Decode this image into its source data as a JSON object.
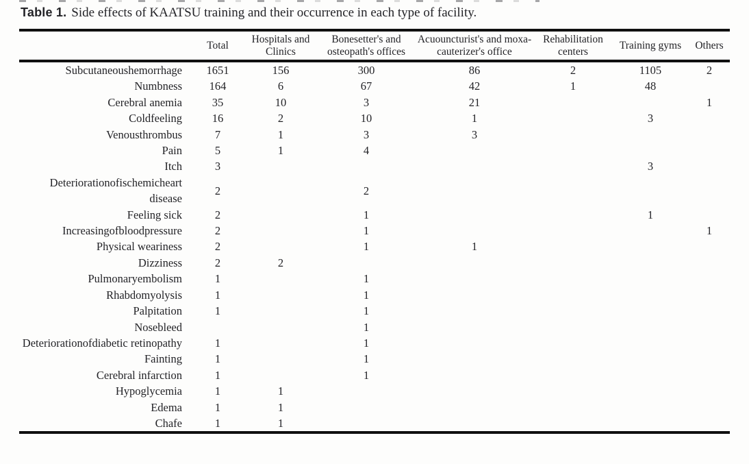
{
  "caption": {
    "label": "Table 1.",
    "text": "Side effects of KAATSU training and their occurrence in each type of facility."
  },
  "table": {
    "columns": [
      "Total",
      "Hospitals and Clinics",
      "Bonesetter's and osteopath's offices",
      "Acuouncturist's and moxa-cauterizer's office",
      "Rehabilitation centers",
      "Training gyms",
      "Others"
    ],
    "rows": [
      {
        "label": "Subcutaneoushemorrhage",
        "values": [
          "1651",
          "156",
          "300",
          "86",
          "2",
          "1105",
          "2"
        ]
      },
      {
        "label": "Numbness",
        "values": [
          "164",
          "6",
          "67",
          "42",
          "1",
          "48",
          ""
        ]
      },
      {
        "label": "Cerebral anemia",
        "values": [
          "35",
          "10",
          "3",
          "21",
          "",
          "",
          "1"
        ]
      },
      {
        "label": "Coldfeeling",
        "values": [
          "16",
          "2",
          "10",
          "1",
          "",
          "3",
          ""
        ]
      },
      {
        "label": "Venousthrombus",
        "values": [
          "7",
          "1",
          "3",
          "3",
          "",
          "",
          ""
        ]
      },
      {
        "label": "Pain",
        "values": [
          "5",
          "1",
          "4",
          "",
          "",
          "",
          ""
        ]
      },
      {
        "label": "Itch",
        "values": [
          "3",
          "",
          "",
          "",
          "",
          "3",
          ""
        ]
      },
      {
        "label": "Deteriorationofischemicheart disease",
        "values": [
          "2",
          "",
          "2",
          "",
          "",
          "",
          ""
        ]
      },
      {
        "label": "Feeling sick",
        "values": [
          "2",
          "",
          "1",
          "",
          "",
          "1",
          ""
        ]
      },
      {
        "label": "Increasingofbloodpressure",
        "values": [
          "2",
          "",
          "1",
          "",
          "",
          "",
          "1"
        ]
      },
      {
        "label": "Physical weariness",
        "values": [
          "2",
          "",
          "1",
          "1",
          "",
          "",
          ""
        ]
      },
      {
        "label": "Dizziness",
        "values": [
          "2",
          "2",
          "",
          "",
          "",
          "",
          ""
        ]
      },
      {
        "label": "Pulmonaryembolism",
        "values": [
          "1",
          "",
          "1",
          "",
          "",
          "",
          ""
        ]
      },
      {
        "label": "Rhabdomyolysis",
        "values": [
          "1",
          "",
          "1",
          "",
          "",
          "",
          ""
        ]
      },
      {
        "label": "Palpitation",
        "values": [
          "1",
          "",
          "1",
          "",
          "",
          "",
          ""
        ]
      },
      {
        "label": "Nosebleed",
        "values": [
          "",
          "",
          "1",
          "",
          "",
          "",
          ""
        ]
      },
      {
        "label": "Deteriorationofdiabetic retinopathy",
        "values": [
          "1",
          "",
          "1",
          "",
          "",
          "",
          ""
        ]
      },
      {
        "label": "Fainting",
        "values": [
          "1",
          "",
          "1",
          "",
          "",
          "",
          ""
        ]
      },
      {
        "label": "Cerebral infarction",
        "values": [
          "1",
          "",
          "1",
          "",
          "",
          "",
          ""
        ]
      },
      {
        "label": "Hypoglycemia",
        "values": [
          "1",
          "1",
          "",
          "",
          "",
          "",
          ""
        ]
      },
      {
        "label": "Edema",
        "values": [
          "1",
          "1",
          "",
          "",
          "",
          "",
          ""
        ]
      },
      {
        "label": "Chafe",
        "values": [
          "1",
          "1",
          "",
          "",
          "",
          "",
          ""
        ]
      }
    ]
  }
}
